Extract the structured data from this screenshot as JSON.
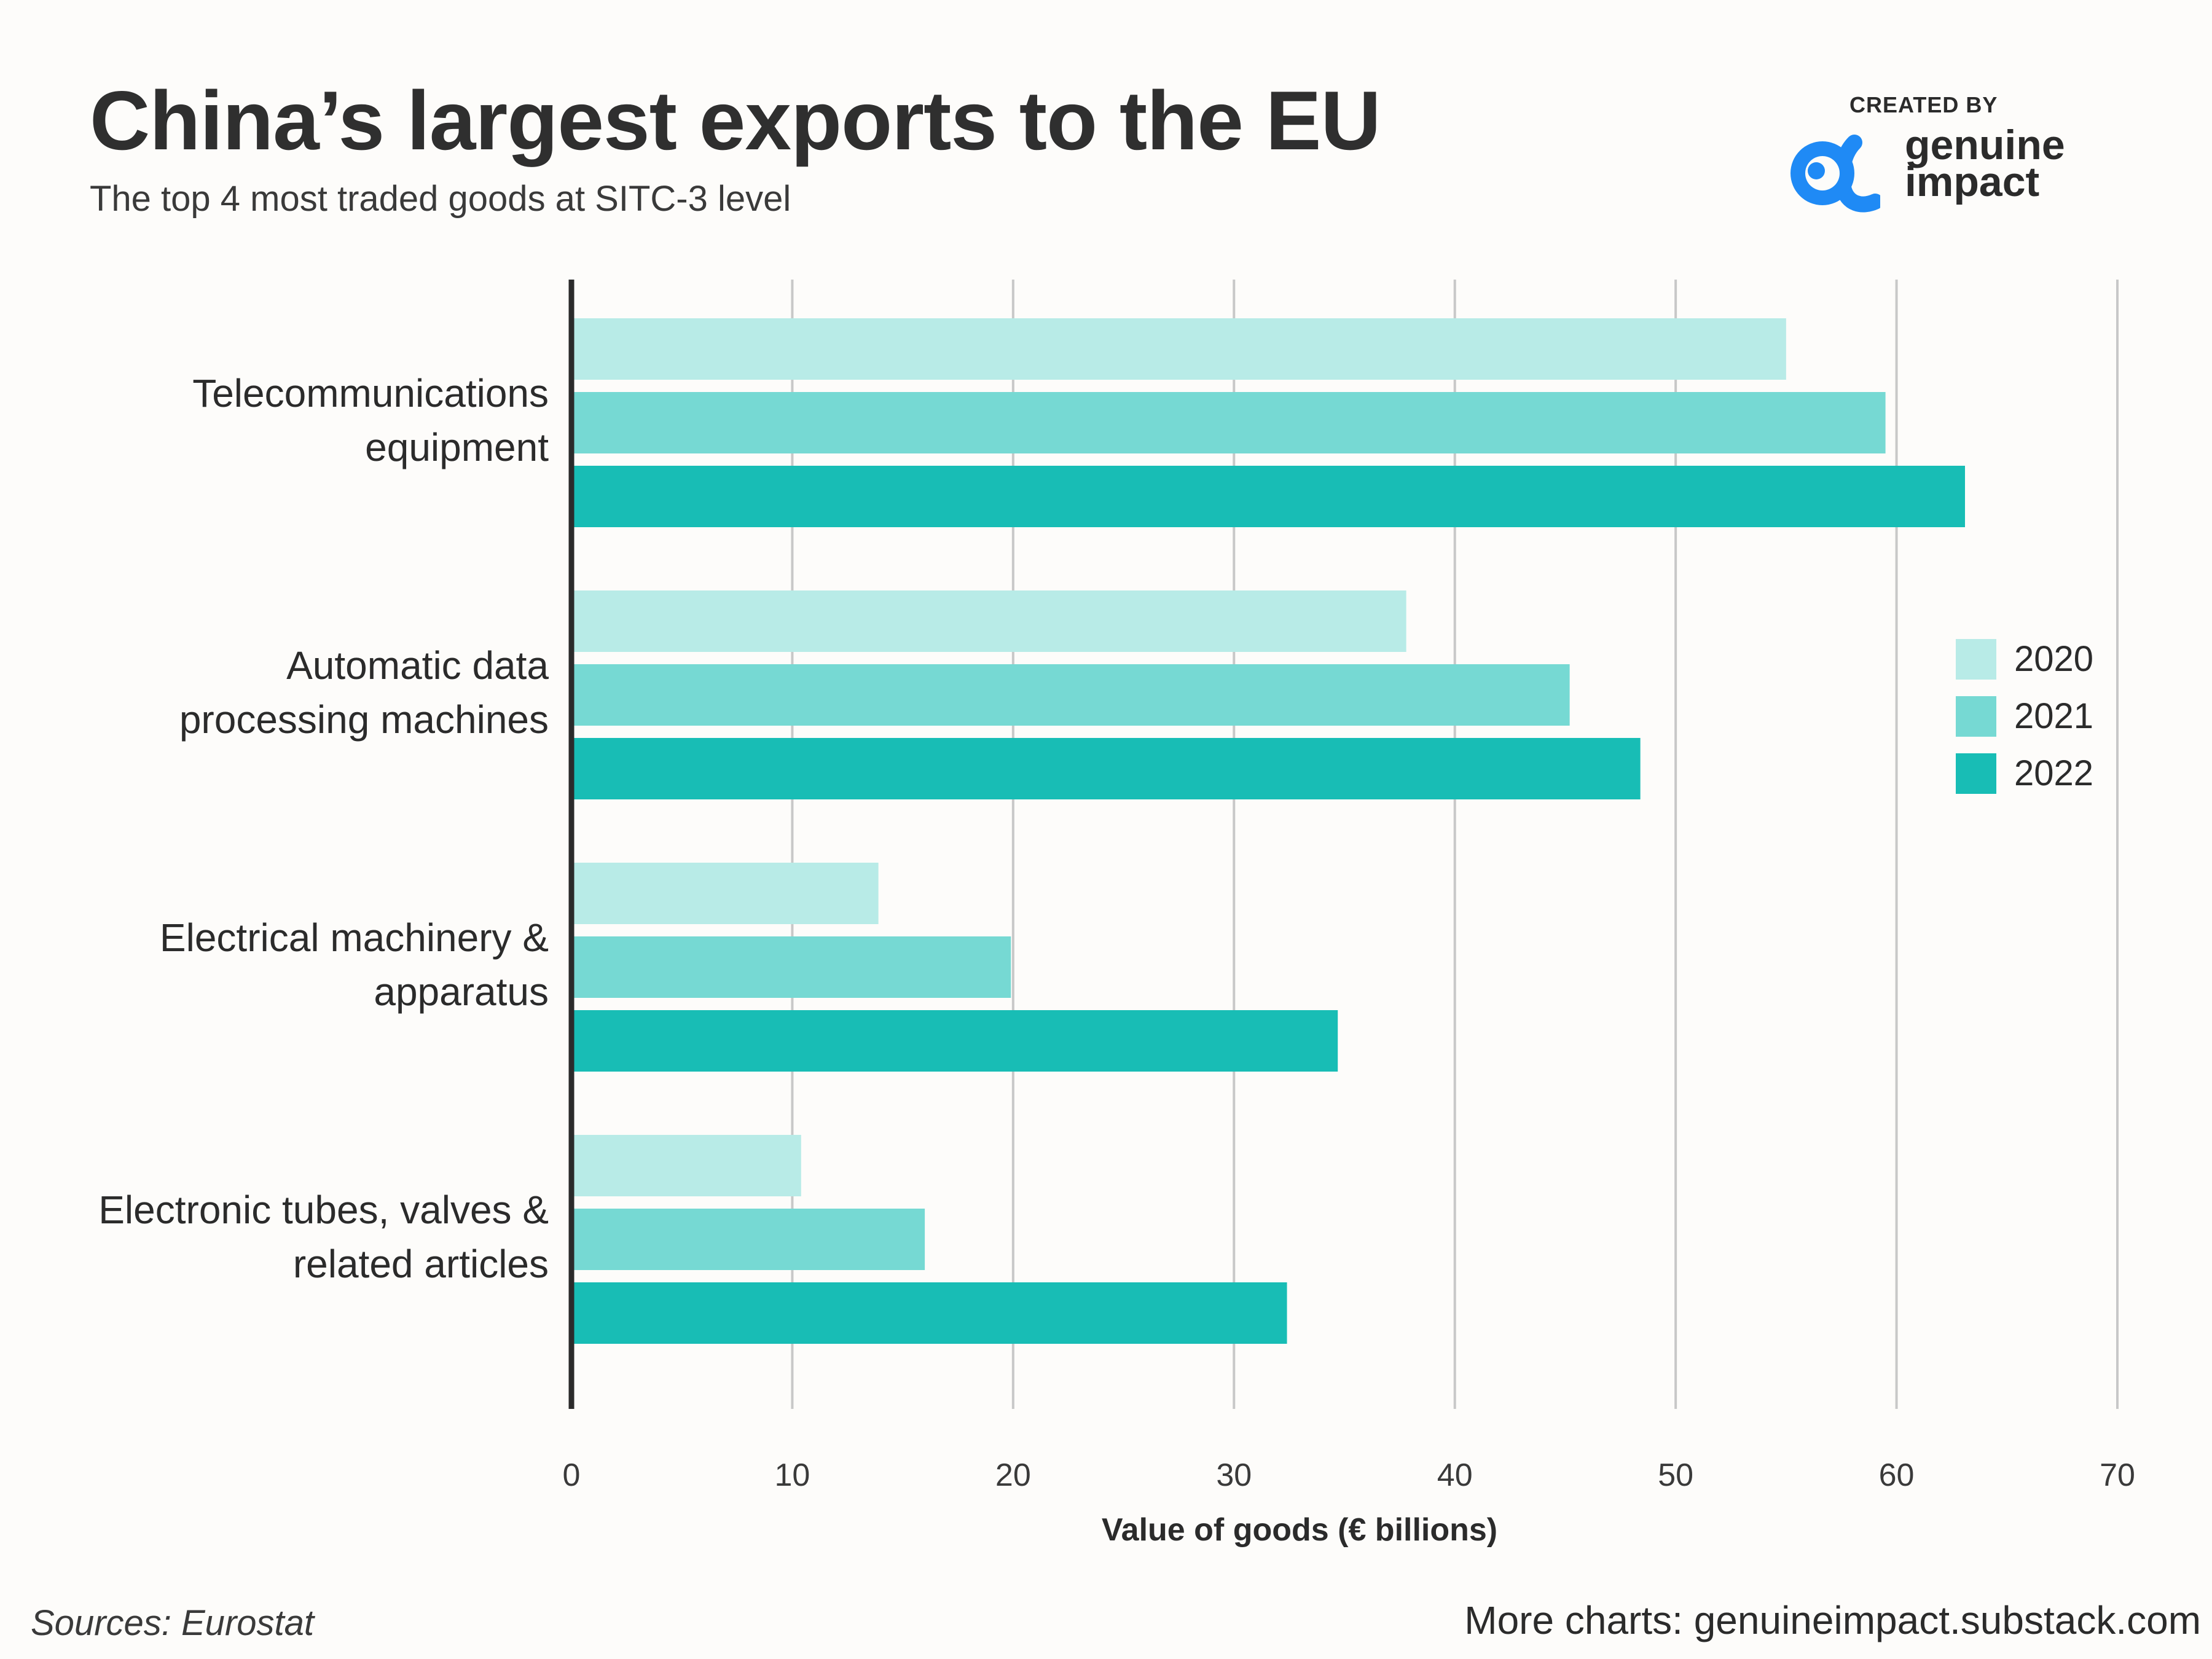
{
  "header": {
    "title": "China’s largest exports to the EU",
    "subtitle": "The top 4 most traded goods at SITC-3 level"
  },
  "brand": {
    "created_by": "CREATED BY",
    "name_line1": "genuine",
    "name_line2": "impact",
    "logo_icon": "alpha-eye-icon",
    "color": "#1f8af5"
  },
  "footer": {
    "source": "Sources: Eurostat",
    "link": "More charts: genuineimpact.substack.com"
  },
  "chart_data": {
    "type": "bar",
    "orientation": "horizontal",
    "categories": [
      [
        "Telecommunications",
        "equipment"
      ],
      [
        "Automatic data",
        "processing machines"
      ],
      [
        "Electrical machinery &",
        "apparatus"
      ],
      [
        "Electronic tubes, valves &",
        "related articles"
      ]
    ],
    "series": [
      {
        "name": "2020",
        "color": "#b8ebe7",
        "values": [
          55.0,
          37.8,
          13.9,
          10.4
        ]
      },
      {
        "name": "2021",
        "color": "#76d9d3",
        "values": [
          59.5,
          45.2,
          19.9,
          16.0
        ]
      },
      {
        "name": "2022",
        "color": "#18bdb5",
        "values": [
          63.1,
          48.4,
          34.7,
          32.4
        ]
      }
    ],
    "xlabel": "Value of goods (€ billions)",
    "xlim": [
      0,
      70
    ],
    "xticks": [
      0,
      10,
      20,
      30,
      40,
      50,
      60,
      70
    ],
    "grid": true,
    "legend": "right"
  }
}
